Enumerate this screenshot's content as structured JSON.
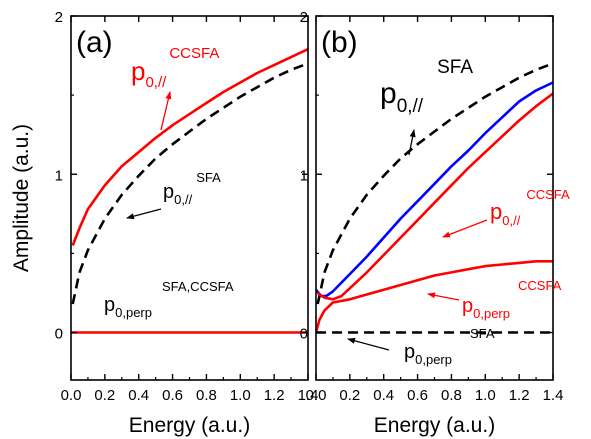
{
  "chart_data": [
    {
      "panel": "(a)",
      "type": "line",
      "xlabel": "Energy (a.u.)",
      "ylabel": "Amplitude (a.u.)",
      "xlim": [
        0.0,
        1.4
      ],
      "ylim": [
        -0.3,
        2.0
      ],
      "xticks": [
        "0.0",
        "0.2",
        "0.4",
        "0.6",
        "0.8",
        "1.0",
        "1.2",
        "1.4"
      ],
      "yticks": [
        "0",
        "1",
        "2"
      ],
      "series": [
        {
          "color": "#ff0000",
          "style": "solid",
          "x": [
            0.01,
            0.05,
            0.1,
            0.2,
            0.3,
            0.4,
            0.5,
            0.6,
            0.7,
            0.8,
            0.9,
            1.0,
            1.1,
            1.2,
            1.3,
            1.4
          ],
          "y": [
            0.55,
            0.66,
            0.78,
            0.93,
            1.05,
            1.14,
            1.23,
            1.31,
            1.38,
            1.45,
            1.52,
            1.58,
            1.64,
            1.69,
            1.74,
            1.79
          ]
        },
        {
          "color": "#000000",
          "style": "dashed",
          "x": [
            0.01,
            0.05,
            0.1,
            0.2,
            0.3,
            0.4,
            0.5,
            0.6,
            0.7,
            0.8,
            0.9,
            1.0,
            1.1,
            1.2,
            1.3,
            1.4
          ],
          "y": [
            0.18,
            0.38,
            0.52,
            0.72,
            0.87,
            0.99,
            1.1,
            1.19,
            1.27,
            1.35,
            1.42,
            1.49,
            1.55,
            1.61,
            1.66,
            1.7
          ]
        },
        {
          "color": "#ff0000",
          "style": "solid",
          "x": [
            0.0,
            1.4
          ],
          "y": [
            0.0,
            0.0
          ]
        }
      ],
      "annotations": [
        {
          "base": "p",
          "sub": "0,//",
          "sup": "CCSFA",
          "color": "#ff0000"
        },
        {
          "base": "p",
          "sub": "0,//",
          "sup": "SFA",
          "color": "#000000"
        },
        {
          "base": "p",
          "sub": "0,perp",
          "sup": "SFA,CCSFA",
          "color": "#000000"
        }
      ]
    },
    {
      "panel": "(b)",
      "type": "line",
      "xlabel": "Energy (a.u.)",
      "ylabel": "",
      "xlim": [
        0.0,
        1.4
      ],
      "ylim": [
        -0.3,
        2.0
      ],
      "xticks": [
        "0.0",
        "0.2",
        "0.4",
        "0.6",
        "0.8",
        "1.0",
        "1.2",
        "1.4"
      ],
      "yticks": [
        "0",
        "1",
        "2"
      ],
      "series": [
        {
          "color": "#000000",
          "style": "dashed",
          "x": [
            0.01,
            0.05,
            0.1,
            0.2,
            0.3,
            0.4,
            0.5,
            0.6,
            0.7,
            0.8,
            0.9,
            1.0,
            1.1,
            1.2,
            1.3,
            1.4
          ],
          "y": [
            0.18,
            0.38,
            0.52,
            0.72,
            0.87,
            0.99,
            1.1,
            1.19,
            1.27,
            1.35,
            1.42,
            1.49,
            1.55,
            1.61,
            1.66,
            1.7
          ]
        },
        {
          "color": "#0000ff",
          "style": "solid",
          "x": [
            0.0,
            0.03,
            0.06,
            0.1,
            0.2,
            0.3,
            0.4,
            0.5,
            0.6,
            0.7,
            0.8,
            0.9,
            1.0,
            1.1,
            1.2,
            1.3,
            1.4
          ],
          "y": [
            0.27,
            0.23,
            0.23,
            0.26,
            0.37,
            0.48,
            0.6,
            0.72,
            0.83,
            0.94,
            1.05,
            1.15,
            1.26,
            1.36,
            1.46,
            1.53,
            1.58
          ]
        },
        {
          "color": "#ff0000",
          "style": "solid",
          "x": [
            0.01,
            0.05,
            0.1,
            0.15,
            0.2,
            0.3,
            0.4,
            0.5,
            0.6,
            0.7,
            0.8,
            0.9,
            1.0,
            1.1,
            1.2,
            1.3,
            1.4
          ],
          "y": [
            0.25,
            0.22,
            0.21,
            0.23,
            0.28,
            0.38,
            0.49,
            0.6,
            0.71,
            0.82,
            0.93,
            1.04,
            1.14,
            1.24,
            1.34,
            1.43,
            1.51
          ]
        },
        {
          "color": "#ff0000",
          "style": "solid",
          "x": [
            0.0,
            0.02,
            0.05,
            0.1,
            0.2,
            0.3,
            0.4,
            0.5,
            0.6,
            0.7,
            0.8,
            0.9,
            1.0,
            1.1,
            1.2,
            1.3,
            1.4
          ],
          "y": [
            0.0,
            0.08,
            0.14,
            0.19,
            0.21,
            0.24,
            0.27,
            0.3,
            0.33,
            0.36,
            0.38,
            0.4,
            0.42,
            0.43,
            0.44,
            0.45,
            0.45
          ]
        },
        {
          "color": "#000000",
          "style": "dashed",
          "x": [
            0.0,
            1.4
          ],
          "y": [
            0.0,
            0.0
          ]
        }
      ],
      "annotations": [
        {
          "base": "p",
          "sub": "0,//",
          "sup": "SFA",
          "color": "#000000"
        },
        {
          "base": "p",
          "sub": "0,//",
          "sup": "CCSFA",
          "color": "#ff0000"
        },
        {
          "base": "p",
          "sub": "0,perp",
          "sup": "CCSFA",
          "color": "#ff0000"
        },
        {
          "base": "p",
          "sub": "0,perp",
          "sup": "SFA",
          "color": "#000000"
        }
      ]
    }
  ]
}
